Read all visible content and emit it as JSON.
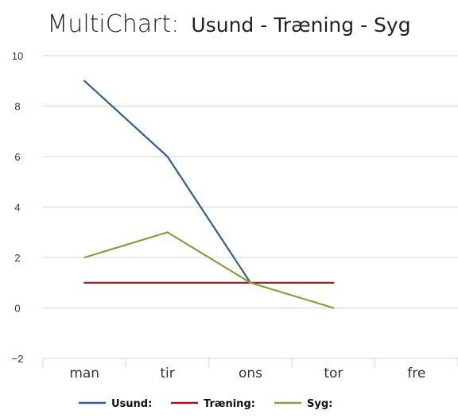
{
  "chart_data": {
    "type": "line",
    "title_main": "MultiChart:",
    "title_sub": "Usund - Træning - Syg",
    "categories": [
      "man",
      "tir",
      "ons",
      "tor",
      "fre"
    ],
    "y_ticks": [
      "10",
      "8",
      "6",
      "4",
      "2",
      "0",
      "−2"
    ],
    "ylim": [
      -2,
      10
    ],
    "grid": true,
    "legend_position": "bottom",
    "series": [
      {
        "name": "Usund:",
        "color": "#2e5f95",
        "values": [
          9,
          6,
          1,
          null,
          null
        ]
      },
      {
        "name": "Træning:",
        "color": "#a01818",
        "values": [
          1,
          1,
          1,
          1,
          null
        ]
      },
      {
        "name": "Syg:",
        "color": "#86a23a",
        "values": [
          2,
          3,
          1,
          0,
          null
        ]
      }
    ]
  }
}
